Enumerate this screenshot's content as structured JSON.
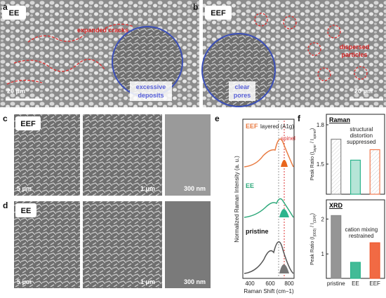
{
  "panels": {
    "a": {
      "label": "a",
      "tag": "EE",
      "crack_note": "expanded cracks",
      "scale": "20 μm",
      "deposit_note": [
        "excessive",
        "deposits"
      ]
    },
    "b": {
      "label": "b",
      "tag": "EEF",
      "particle_note": [
        "dispersed",
        "particles"
      ],
      "pore_note": [
        "clear",
        "pores"
      ],
      "scale": "20 μm"
    },
    "c": {
      "label": "c",
      "tag": "EEF",
      "scales": [
        "5 μm",
        "1 μm",
        "300 nm"
      ]
    },
    "d": {
      "label": "d",
      "tag": "EE",
      "scales": [
        "5 μm",
        "1 μm",
        "300 nm"
      ]
    },
    "e": {
      "label": "e",
      "eef": "EEF",
      "layered": "layered (A1g)",
      "spinel": "spinel",
      "ee": "EE",
      "pristine": "pristine",
      "ylabel": "Normalized Raman Intensity (a. u.)",
      "xlabel": "Raman Shift (cm−1)",
      "xticks": [
        "400",
        "600",
        "800"
      ]
    },
    "f": {
      "label": "f"
    }
  },
  "chart_data": [
    {
      "type": "bar",
      "title": "Raman",
      "ylabel": [
        "Peak Ratio (I",
        "layer",
        " / I",
        "spinel",
        ")"
      ],
      "values": [
        1.69,
        1.53,
        1.61
      ],
      "colors": [
        "#8a8a8a",
        "#2db48c",
        "#f07a50"
      ],
      "ylim": [
        1.27,
        1.88
      ],
      "yticks": [
        1.5,
        1.8
      ],
      "annotation": [
        "structural",
        "distortion",
        "suppressed"
      ]
    },
    {
      "type": "bar",
      "title": "XRD",
      "ylabel": [
        "Peak Ratio (I",
        "(003)",
        " / I",
        "(104)",
        ")"
      ],
      "categories": [
        "pristine",
        "EE",
        "EEF"
      ],
      "values": [
        2.1,
        0.76,
        1.32
      ],
      "colors": [
        "#8a8a8a",
        "#2db48c",
        "#f05a30"
      ],
      "ylim": [
        0.3,
        2.55
      ],
      "yticks": [
        1,
        2
      ],
      "annotation": [
        "cation mixing",
        "restrained"
      ]
    }
  ]
}
